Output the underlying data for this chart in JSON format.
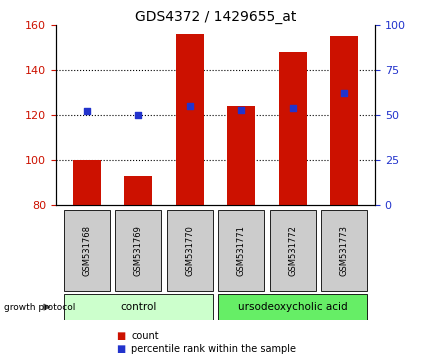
{
  "title": "GDS4372 / 1429655_at",
  "samples": [
    "GSM531768",
    "GSM531769",
    "GSM531770",
    "GSM531771",
    "GSM531772",
    "GSM531773"
  ],
  "counts": [
    100,
    93,
    156,
    124,
    148,
    155
  ],
  "percentiles": [
    52,
    50,
    55,
    53,
    54,
    62
  ],
  "bar_bottom": 80,
  "ylim_left": [
    80,
    160
  ],
  "ylim_right": [
    0,
    100
  ],
  "yticks_left": [
    80,
    100,
    120,
    140,
    160
  ],
  "yticks_right": [
    0,
    25,
    50,
    75,
    100
  ],
  "bar_color": "#cc1100",
  "dot_color": "#2233cc",
  "control_color": "#ccffcc",
  "treatment_color": "#66ee66",
  "label_bg_color": "#cccccc",
  "group_labels": [
    "control",
    "ursodeoxycholic acid"
  ],
  "protocol_label": "growth protocol",
  "legend_count": "count",
  "legend_pct": "percentile rank within the sample",
  "title_fontsize": 10,
  "tick_fontsize": 8,
  "sample_fontsize": 6,
  "group_fontsize": 7.5,
  "legend_fontsize": 7
}
